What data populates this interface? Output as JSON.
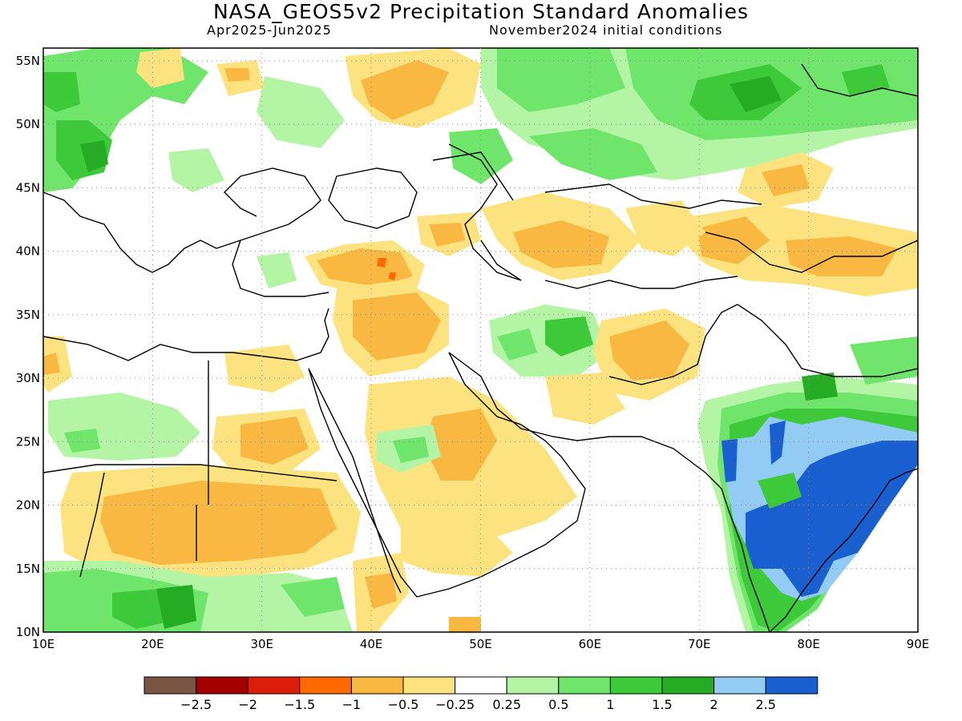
{
  "header": {
    "title": "NASA_GEOS5v2 Precipitation Standard Anomalies",
    "period": "Apr2025-Jun2025",
    "init": "November2024 initial conditions"
  },
  "map": {
    "lon_range": [
      10,
      90
    ],
    "lat_range": [
      10,
      56
    ],
    "lon_ticks": [
      "10E",
      "20E",
      "30E",
      "40E",
      "50E",
      "60E",
      "70E",
      "80E",
      "90E"
    ],
    "lat_ticks": [
      "55N",
      "50N",
      "45N",
      "40N",
      "35N",
      "30N",
      "25N",
      "20N",
      "15N",
      "10N"
    ],
    "grid": "dotted"
  },
  "legend": {
    "colors": [
      "#7a5543",
      "#a50000",
      "#dc1e0a",
      "#ff6a00",
      "#f9b841",
      "#fde37f",
      "#ffffff",
      "#b4f5a5",
      "#6fe66b",
      "#3ec93b",
      "#25ab24",
      "#92ccf5",
      "#1a5fd0"
    ],
    "labels": [
      "-2.5",
      "-2",
      "-1.5",
      "-1",
      "-0.5",
      "-0.25",
      "0.25",
      "0.5",
      "1",
      "1.5",
      "2",
      "2.5"
    ]
  }
}
